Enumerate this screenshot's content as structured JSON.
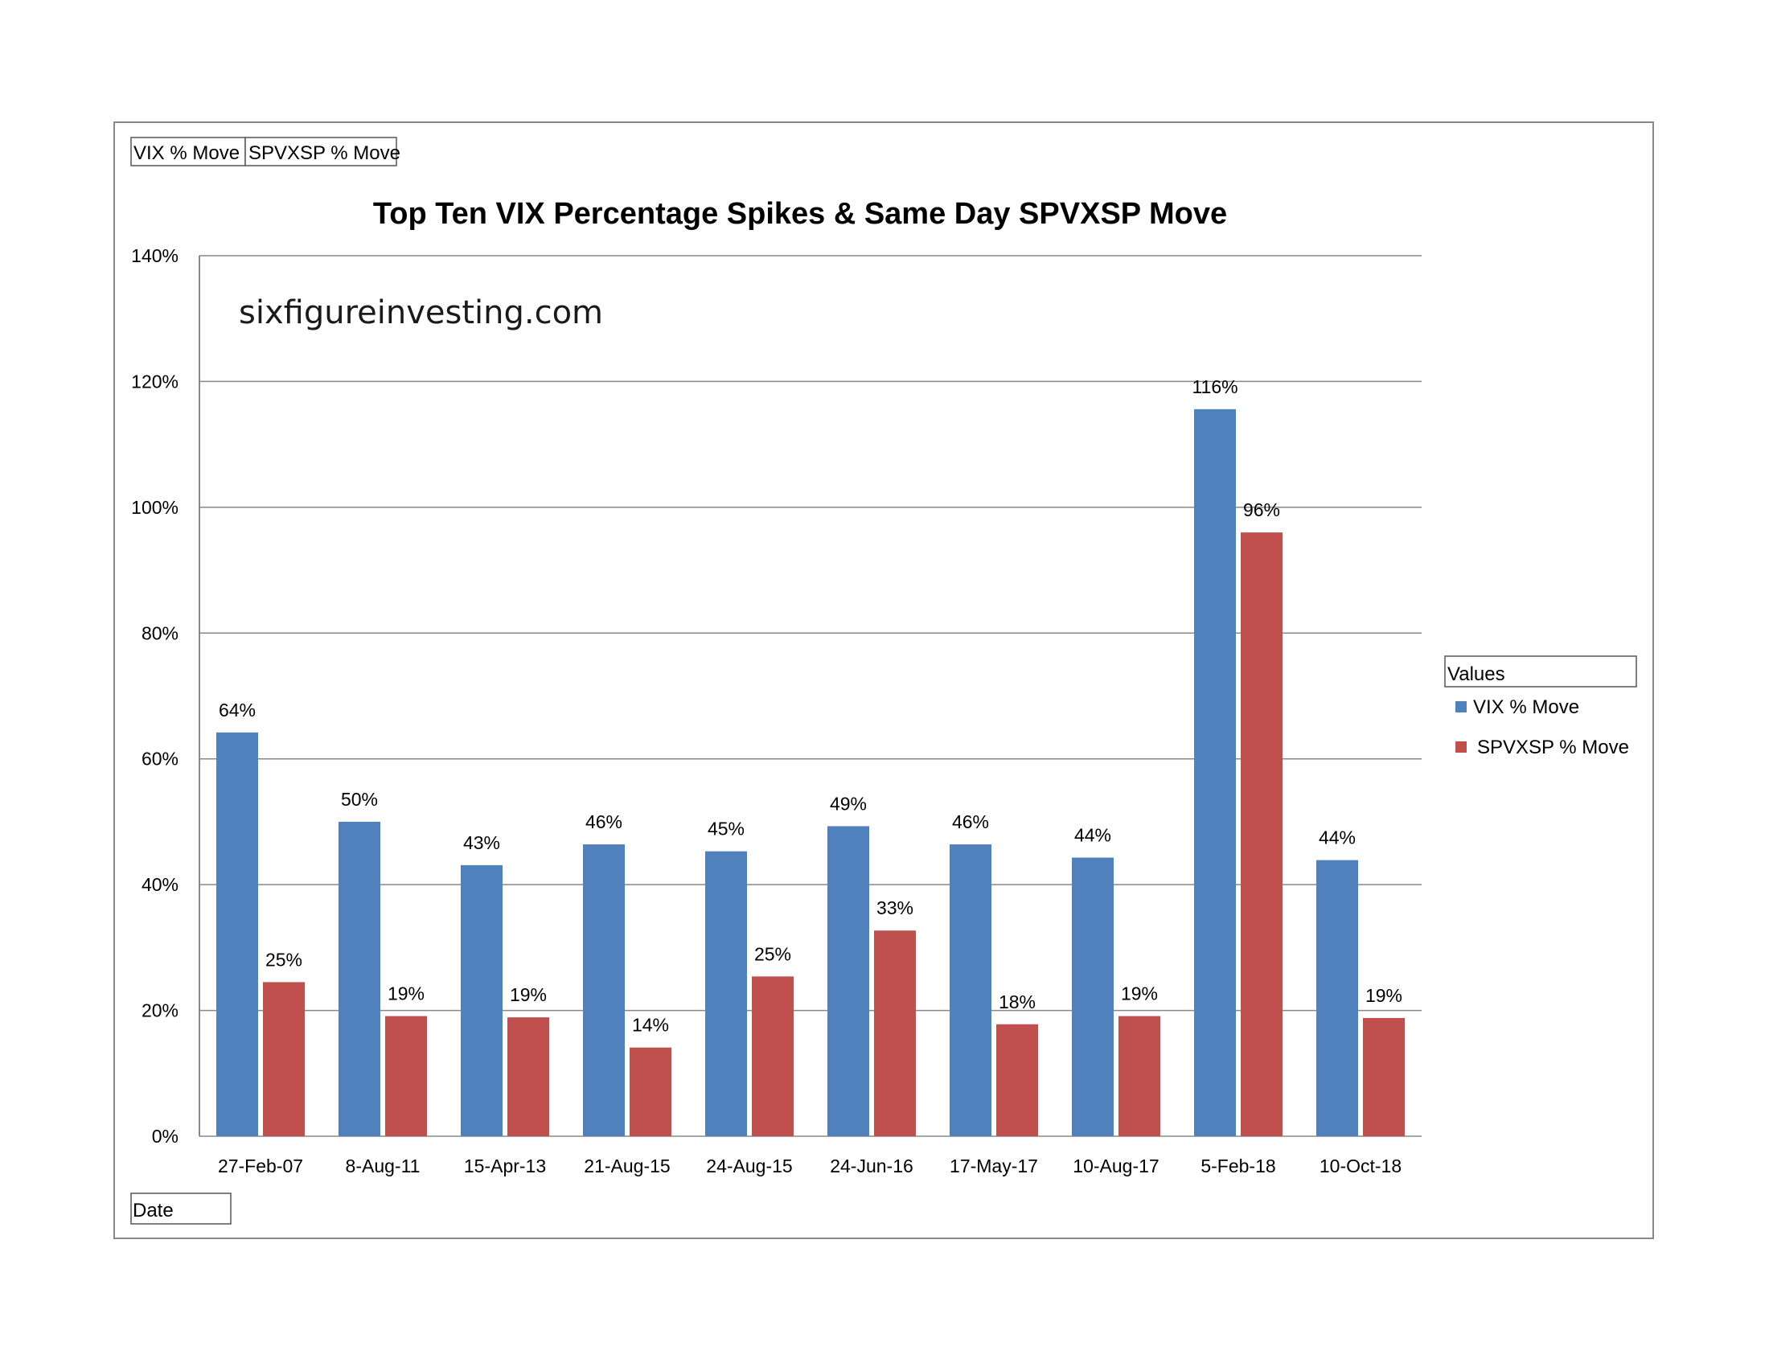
{
  "field_buttons": {
    "filter_1": "VIX % Move",
    "filter_2": "SPVXSP % Move",
    "axis_field": "Date"
  },
  "watermark": "sixfigureinvesting.com",
  "legend": {
    "title": "Values",
    "position": "right"
  },
  "colors": {
    "vix": "#4F81BD",
    "spvxsp": "#C0504D",
    "grid": "#888888"
  },
  "chart_data": {
    "type": "bar",
    "title": "Top Ten VIX Percentage Spikes & Same Day SPVXSP Move",
    "xlabel": "",
    "ylabel": "",
    "categories": [
      "27-Feb-07",
      "8-Aug-11",
      "15-Apr-13",
      "21-Aug-15",
      "24-Aug-15",
      "24-Jun-16",
      "17-May-17",
      "10-Aug-17",
      "5-Feb-18",
      "10-Oct-18"
    ],
    "series": [
      {
        "name": "VIX % Move",
        "values": [
          64.2,
          50.0,
          43.1,
          46.4,
          45.3,
          49.3,
          46.4,
          44.3,
          115.6,
          43.9
        ],
        "labels": [
          "64%",
          "50%",
          "43%",
          "46%",
          "45%",
          "49%",
          "46%",
          "44%",
          "116%",
          "44%"
        ]
      },
      {
        "name": "SPVXSP % Move",
        "values": [
          24.5,
          19.1,
          18.9,
          14.1,
          25.4,
          32.7,
          17.8,
          19.1,
          96.0,
          18.8
        ],
        "labels": [
          "25%",
          "19%",
          "19%",
          "14%",
          "25%",
          "33%",
          "18%",
          "19%",
          "96%",
          "19%"
        ]
      }
    ],
    "ylim": [
      0,
      140
    ],
    "yticks": [
      0,
      20,
      40,
      60,
      80,
      100,
      120,
      140
    ],
    "ytick_labels": [
      "0%",
      "20%",
      "40%",
      "60%",
      "80%",
      "100%",
      "120%",
      "140%"
    ],
    "grid": true
  }
}
